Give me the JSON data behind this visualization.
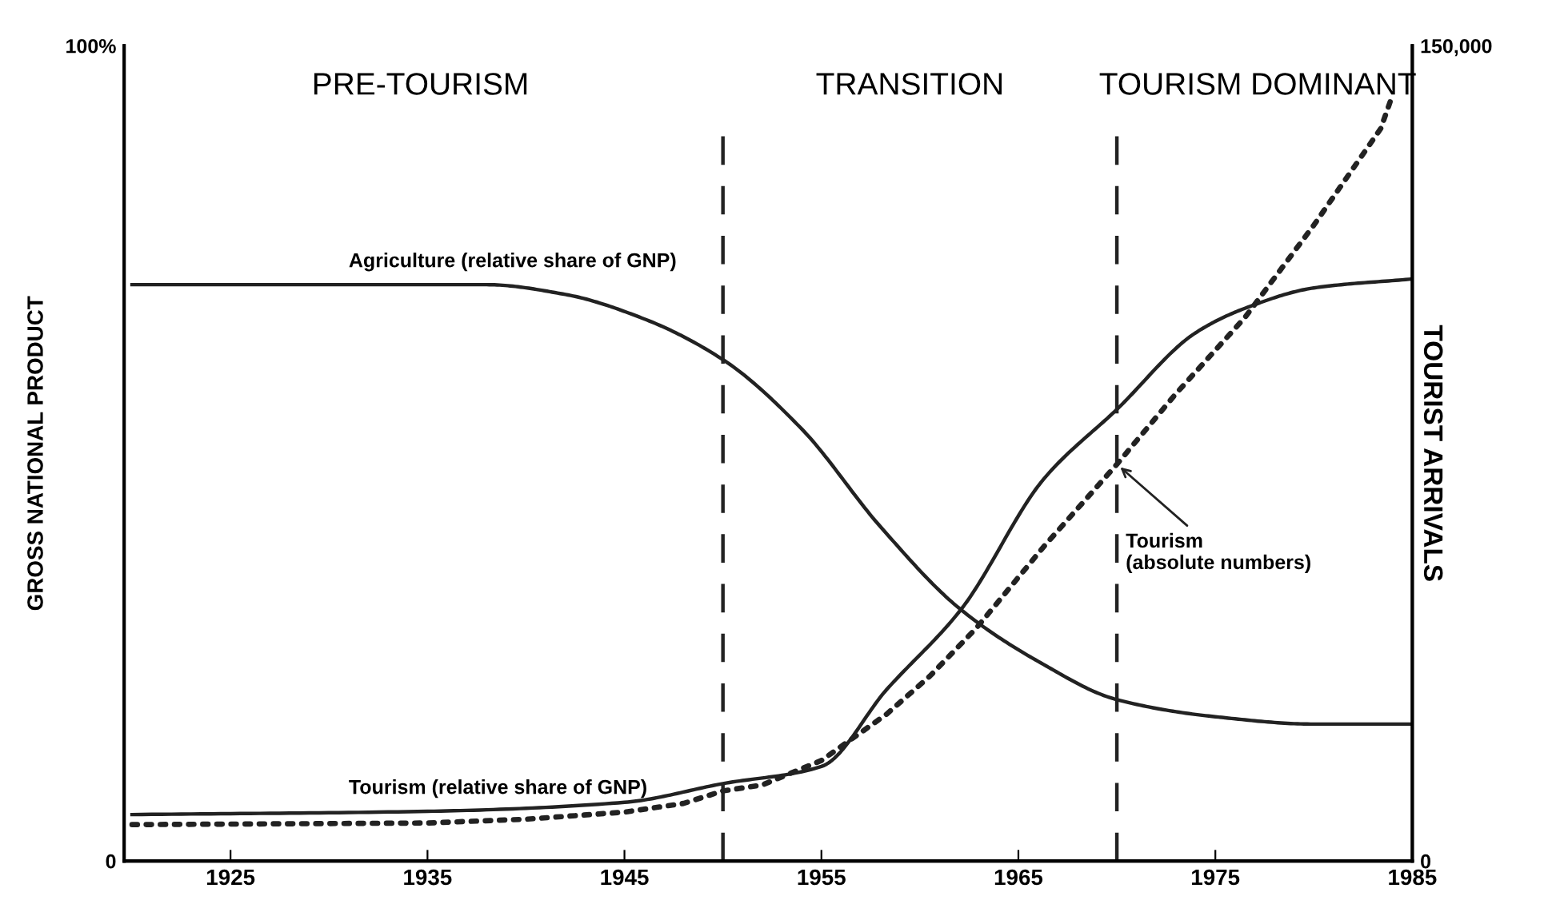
{
  "chart_data": {
    "type": "line",
    "ylabel": "GROSS NATIONAL PRODUCT",
    "y2label": "TOURIST ARRIVALS",
    "xlim": [
      1919.6,
      1985
    ],
    "xticks": [
      1925,
      1935,
      1945,
      1955,
      1965,
      1975,
      1985
    ],
    "ylim": [
      0,
      100
    ],
    "yticks": [
      0,
      {
        "value": 100,
        "label": "100%"
      }
    ],
    "y2lim": [
      0,
      150000
    ],
    "y2ticks": [
      0,
      {
        "value": 150000,
        "label": "150,000"
      }
    ],
    "tick_labels": true,
    "grid": false,
    "legend": false,
    "series": [
      {
        "color": "#222222",
        "line_style": "solid",
        "x": [
          1920,
          1930,
          1938,
          1942,
          1946,
          1950,
          1954,
          1958,
          1962,
          1966,
          1970,
          1975,
          1980,
          1985
        ],
        "values": [
          70.7,
          70.7,
          70.7,
          69.5,
          66.5,
          61.5,
          53,
          41,
          31,
          24.5,
          19.8,
          17.7,
          16.8,
          16.8
        ]
      },
      {
        "color": "#222222",
        "line_style": "solid",
        "x": [
          1920,
          1935,
          1945,
          1950,
          1955,
          1958.3,
          1962.1,
          1966.3,
          1970,
          1974,
          1976.5,
          1980,
          1985
        ],
        "values": [
          5.7,
          6.1,
          7.2,
          9.5,
          11.6,
          21,
          30.9,
          46.9,
          55.4,
          64.8,
          67.8,
          70.3,
          71.4
        ]
      },
      {
        "name": "Tourism\n(absolute numbers)",
        "color": "#222222",
        "line_style": "dotted",
        "axis": "y2",
        "x": [
          1920,
          1935,
          1940,
          1945,
          1948,
          1950,
          1952,
          1955,
          1958.3,
          1960.5,
          1962.9,
          1966.3,
          1970,
          1973,
          1976.5,
          1980,
          1983.4,
          1984
        ],
        "values": [
          6700,
          7000,
          7700,
          9000,
          10600,
          12900,
          14000,
          18500,
          27000,
          34000,
          43000,
          57900,
          73000,
          86000,
          100000,
          117000,
          134800,
          141000
        ]
      }
    ],
    "ref_lines": [
      {
        "axis": "x",
        "value": 1950,
        "color": "#222222",
        "line_style": "dashed"
      },
      {
        "axis": "x",
        "value": 1970,
        "color": "#222222",
        "line_style": "dashed"
      }
    ],
    "annotations": [
      "PRE-TOURISM",
      "TRANSITION",
      "TOURISM DOMINANT",
      {
        "text": "Agriculture (relative share of GNP)",
        "x": 1931,
        "y": 70.7
      },
      {
        "text": "Tourism (relative share of GNP)",
        "x": 1931,
        "y": 6.1
      }
    ]
  }
}
